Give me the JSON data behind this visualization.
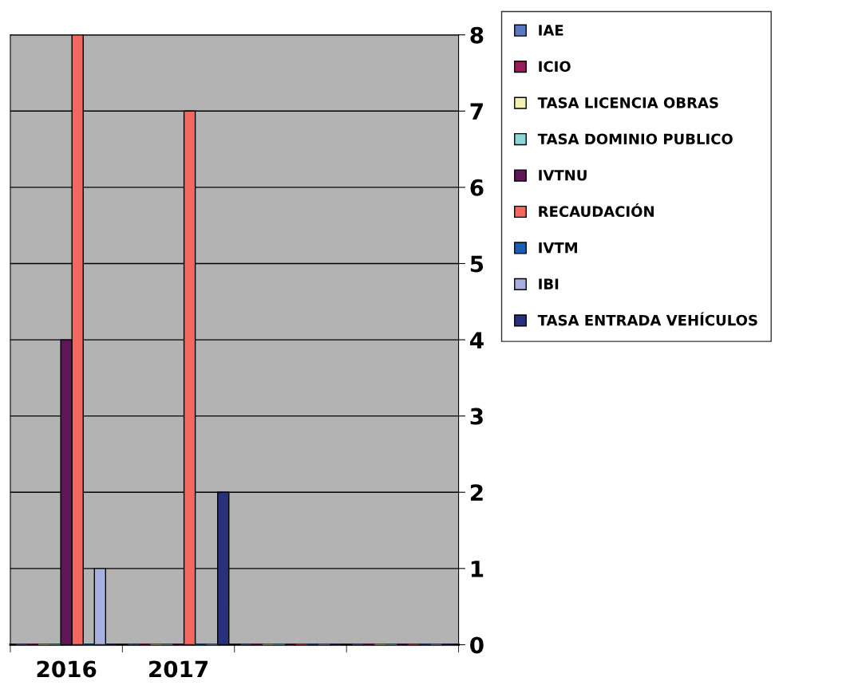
{
  "chart_data": {
    "type": "bar",
    "categories": [
      "2016",
      "2017",
      null,
      null
    ],
    "series": [
      {
        "name": "IAE",
        "color": "#5b77c0",
        "values": [
          0,
          0,
          0,
          0
        ]
      },
      {
        "name": "ICIO",
        "color": "#9b1b5a",
        "values": [
          0,
          0,
          0,
          0
        ]
      },
      {
        "name": "TASA LICENCIA OBRAS",
        "color": "#f4f1b0",
        "values": [
          0,
          0,
          0,
          0
        ]
      },
      {
        "name": "TASA DOMINIO PUBLICO",
        "color": "#8fd6d6",
        "values": [
          0,
          0,
          0,
          0
        ]
      },
      {
        "name": "IVTNU",
        "color": "#5e1657",
        "values": [
          4,
          0,
          0,
          0
        ]
      },
      {
        "name": "RECAUDACIÓN",
        "color": "#f2675f",
        "values": [
          8,
          7,
          0,
          0
        ]
      },
      {
        "name": "IVTM",
        "color": "#1a5fb4",
        "values": [
          0,
          0,
          0,
          0
        ]
      },
      {
        "name": "IBI",
        "color": "#a8b0e0",
        "values": [
          1,
          0,
          0,
          0
        ]
      },
      {
        "name": "TASA ENTRADA VEHÍCULOS",
        "color": "#27307c",
        "values": [
          0,
          2,
          0,
          0
        ]
      }
    ],
    "ylim": [
      0,
      8
    ],
    "yticks": [
      0,
      1,
      2,
      3,
      4,
      5,
      6,
      7,
      8
    ],
    "grid": "y",
    "legend": "right"
  }
}
